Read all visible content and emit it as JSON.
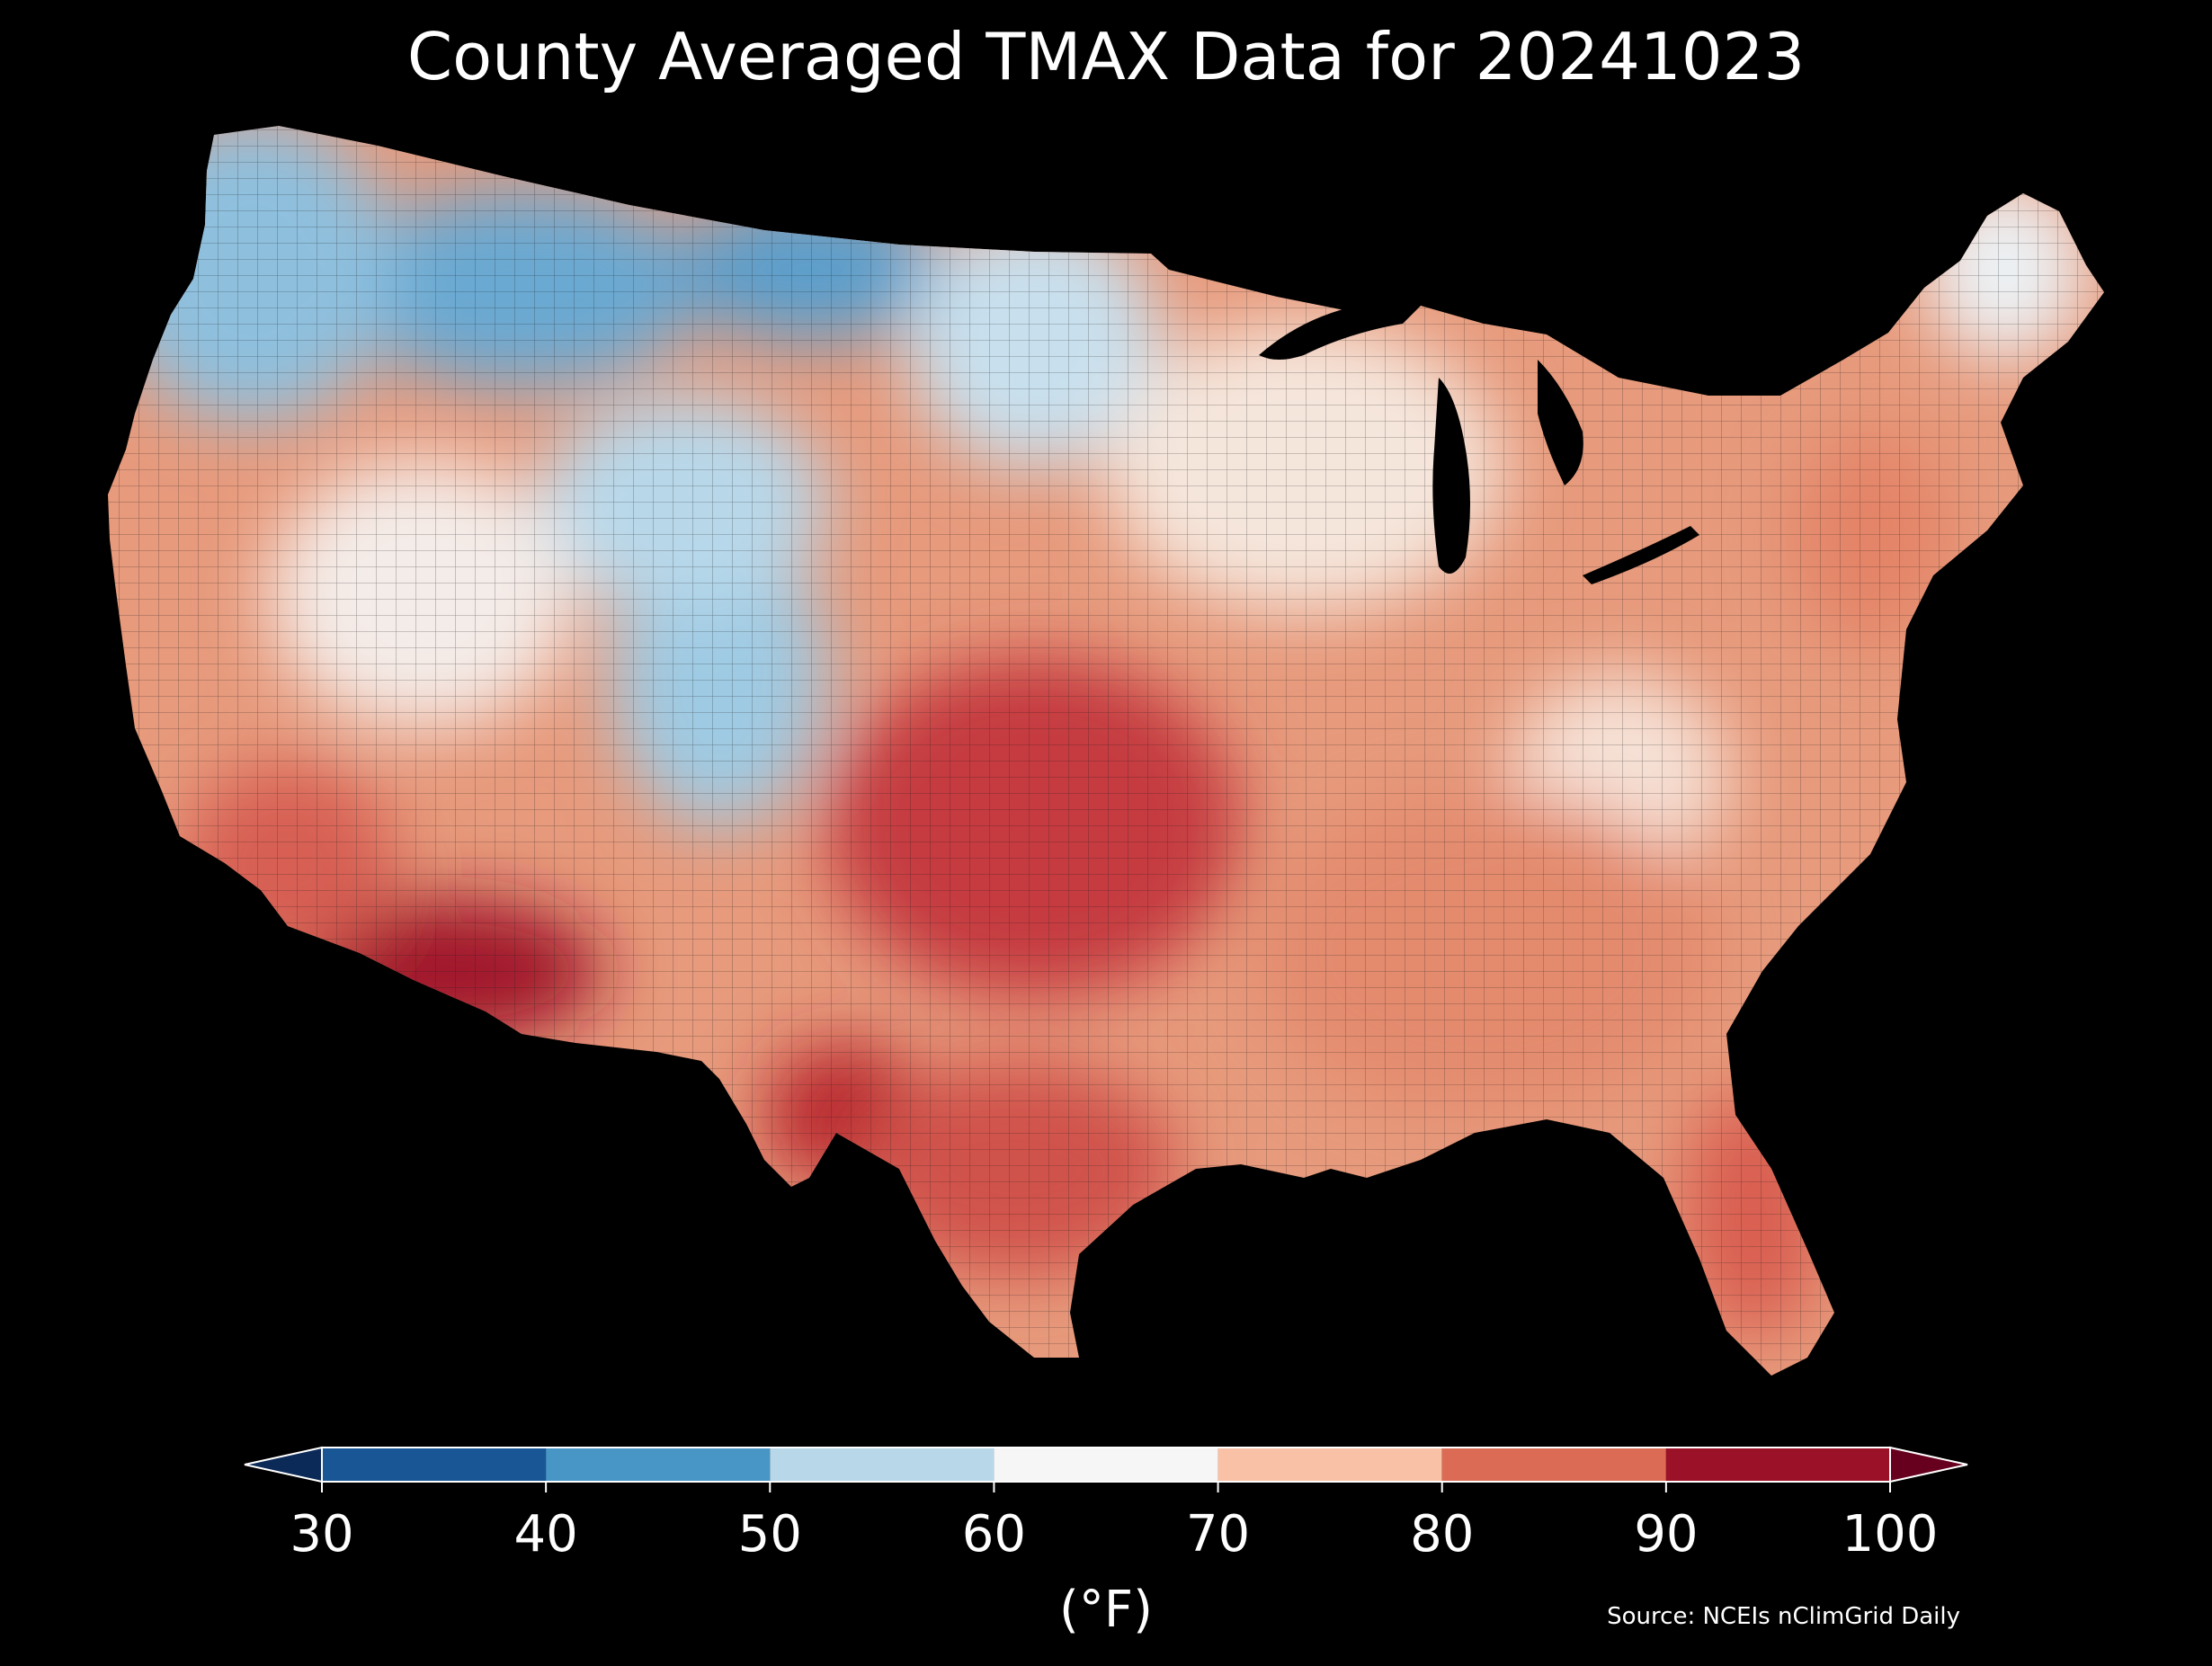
{
  "title": "County Averaged TMAX Data for 20241023",
  "colorbar": {
    "unit_label": "(°F)",
    "ticks": [
      "30",
      "40",
      "50",
      "60",
      "70",
      "80",
      "90",
      "100"
    ],
    "bins": [
      {
        "range": [
          30,
          40
        ],
        "color": "#195696"
      },
      {
        "range": [
          40,
          50
        ],
        "color": "#4896c6"
      },
      {
        "range": [
          50,
          60
        ],
        "color": "#b8d8ea"
      },
      {
        "range": [
          60,
          70
        ],
        "color": "#f6f6f6"
      },
      {
        "range": [
          70,
          80
        ],
        "color": "#f9c1a6"
      },
      {
        "range": [
          80,
          90
        ],
        "color": "#dc6b56"
      },
      {
        "range": [
          90,
          100
        ],
        "color": "#9b1127"
      }
    ],
    "under_color": "#0b2a57",
    "over_color": "#67001f",
    "extend": "both"
  },
  "source": "Source: NCEIs nClimGrid Daily",
  "map": {
    "region": "Contiguous United States",
    "variable": "TMAX",
    "date": "20241023",
    "units": "°F",
    "background": "#000000",
    "regional_values": [
      {
        "region": "Northern Rockies / Montana",
        "value": 45
      },
      {
        "region": "Pacific Northwest",
        "value": 50
      },
      {
        "region": "Northern Plains",
        "value": 55
      },
      {
        "region": "Great Basin",
        "value": 66
      },
      {
        "region": "Colorado Rockies",
        "value": 55
      },
      {
        "region": "Upper Midwest / Great Lakes",
        "value": 68
      },
      {
        "region": "New England",
        "value": 65
      },
      {
        "region": "Central Plains / Kansas / Oklahoma",
        "value": 85
      },
      {
        "region": "Desert Southwest / Arizona",
        "value": 93
      },
      {
        "region": "Southern California",
        "value": 84
      },
      {
        "region": "Texas",
        "value": 86
      },
      {
        "region": "Southeast",
        "value": 80
      },
      {
        "region": "Florida",
        "value": 84
      },
      {
        "region": "Mid-Atlantic",
        "value": 79
      },
      {
        "region": "Appalachians",
        "value": 71
      }
    ]
  }
}
